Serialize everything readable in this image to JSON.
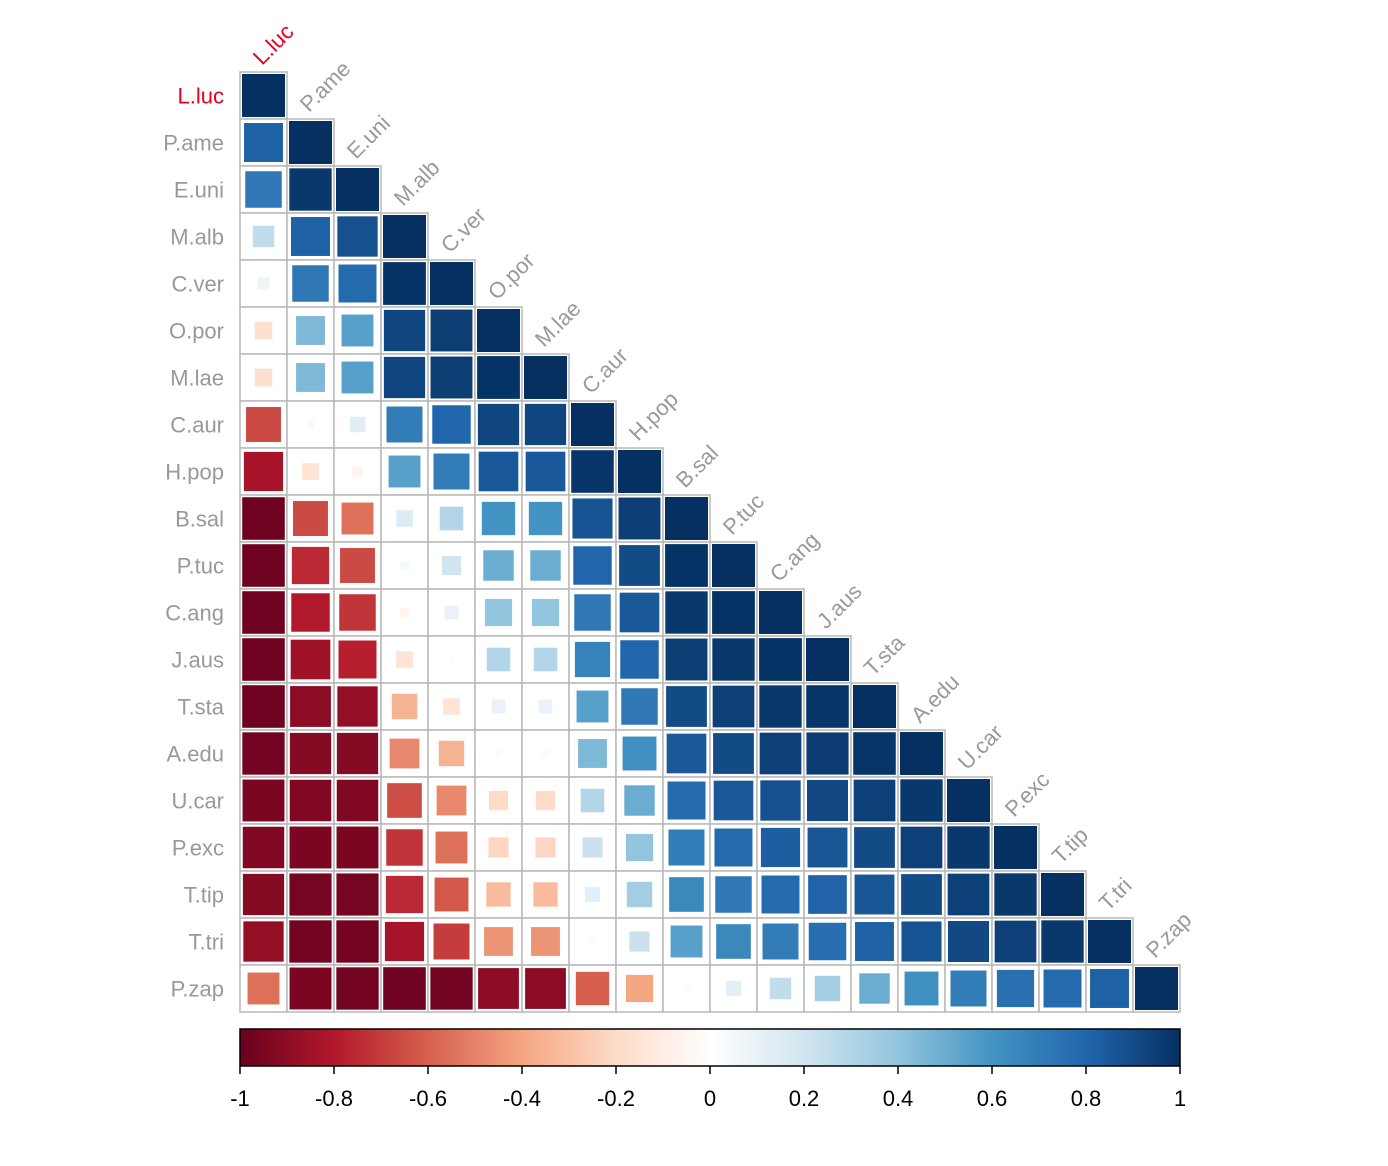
{
  "chart_data": {
    "type": "heatmap",
    "title": "",
    "xlabel": "",
    "ylabel": "",
    "variables": [
      "L.luc",
      "P.ame",
      "E.uni",
      "M.alb",
      "C.ver",
      "O.por",
      "M.lae",
      "C.aur",
      "H.pop",
      "B.sal",
      "P.tuc",
      "C.ang",
      "J.aus",
      "T.sta",
      "A.edu",
      "U.car",
      "P.exc",
      "T.tip",
      "T.tri",
      "P.zap"
    ],
    "highlight_variable": "L.luc",
    "highlight_color": "#e8001c",
    "label_color": "#999999",
    "lower_triangle": [
      [
        1.0
      ],
      [
        0.82,
        1.0
      ],
      [
        0.72,
        0.97,
        1.0
      ],
      [
        0.25,
        0.82,
        0.88,
        1.0
      ],
      [
        0.08,
        0.72,
        0.78,
        0.99,
        1.0
      ],
      [
        -0.17,
        0.45,
        0.55,
        0.92,
        0.95,
        1.0
      ],
      [
        -0.17,
        0.45,
        0.55,
        0.92,
        0.95,
        0.99,
        1.0
      ],
      [
        -0.66,
        0.03,
        0.13,
        0.7,
        0.8,
        0.92,
        0.92,
        1.0
      ],
      [
        -0.83,
        -0.15,
        -0.06,
        0.55,
        0.7,
        0.85,
        0.85,
        0.98,
        1.0
      ],
      [
        -0.98,
        -0.66,
        -0.55,
        0.15,
        0.3,
        0.6,
        0.6,
        0.87,
        0.95,
        1.0
      ],
      [
        -0.98,
        -0.75,
        -0.66,
        0.05,
        0.2,
        0.5,
        0.5,
        0.8,
        0.9,
        0.99,
        1.0
      ],
      [
        -0.98,
        -0.8,
        -0.72,
        -0.05,
        0.1,
        0.4,
        0.4,
        0.72,
        0.85,
        0.97,
        0.99,
        1.0
      ],
      [
        -0.98,
        -0.85,
        -0.78,
        -0.15,
        0.02,
        0.3,
        0.3,
        0.67,
        0.8,
        0.95,
        0.97,
        0.99,
        1.0
      ],
      [
        -0.98,
        -0.9,
        -0.88,
        -0.35,
        -0.15,
        0.1,
        0.1,
        0.55,
        0.72,
        0.9,
        0.94,
        0.97,
        0.98,
        1.0
      ],
      [
        -0.97,
        -0.92,
        -0.92,
        -0.48,
        -0.35,
        -0.03,
        -0.03,
        0.45,
        0.62,
        0.85,
        0.9,
        0.94,
        0.96,
        0.98,
        1.0
      ],
      [
        -0.95,
        -0.93,
        -0.93,
        -0.65,
        -0.48,
        -0.2,
        -0.2,
        0.3,
        0.5,
        0.78,
        0.85,
        0.88,
        0.91,
        0.94,
        0.97,
        1.0
      ],
      [
        -0.93,
        -0.95,
        -0.95,
        -0.72,
        -0.55,
        -0.22,
        -0.22,
        0.22,
        0.4,
        0.7,
        0.78,
        0.83,
        0.86,
        0.9,
        0.94,
        0.97,
        1.0
      ],
      [
        -0.92,
        -0.96,
        -0.96,
        -0.75,
        -0.62,
        -0.32,
        -0.32,
        0.12,
        0.35,
        0.65,
        0.72,
        0.78,
        0.81,
        0.86,
        0.9,
        0.94,
        0.97,
        1.0
      ],
      [
        -0.88,
        -0.97,
        -0.97,
        -0.83,
        -0.7,
        -0.45,
        -0.45,
        0.02,
        0.22,
        0.55,
        0.65,
        0.7,
        0.76,
        0.82,
        0.87,
        0.91,
        0.94,
        0.97,
        1.0
      ],
      [
        -0.55,
        -0.95,
        -0.97,
        -0.98,
        -0.97,
        -0.9,
        -0.9,
        -0.6,
        -0.4,
        0.02,
        0.12,
        0.25,
        0.35,
        0.5,
        0.62,
        0.7,
        0.75,
        0.78,
        0.82,
        1.0
      ]
    ],
    "colorbar": {
      "ticks": [
        -1,
        -0.8,
        -0.6,
        -0.4,
        -0.2,
        0,
        0.2,
        0.4,
        0.6,
        0.8,
        1
      ],
      "tick_labels": [
        "-1",
        "-0.8",
        "-0.6",
        "-0.4",
        "-0.2",
        "0",
        "0.2",
        "0.4",
        "0.6",
        "0.8",
        "1"
      ],
      "range": [
        -1,
        1
      ]
    },
    "colorscale": [
      [
        -1.0,
        "#67001f"
      ],
      [
        -0.8,
        "#b2182b"
      ],
      [
        -0.6,
        "#d6604d"
      ],
      [
        -0.4,
        "#f4a582"
      ],
      [
        -0.2,
        "#fddbc7"
      ],
      [
        0.0,
        "#ffffff"
      ],
      [
        0.2,
        "#d1e5f0"
      ],
      [
        0.4,
        "#92c5de"
      ],
      [
        0.6,
        "#4393c3"
      ],
      [
        0.8,
        "#2166ac"
      ],
      [
        1.0,
        "#053061"
      ]
    ],
    "grid": true,
    "legend_position": "bottom"
  }
}
